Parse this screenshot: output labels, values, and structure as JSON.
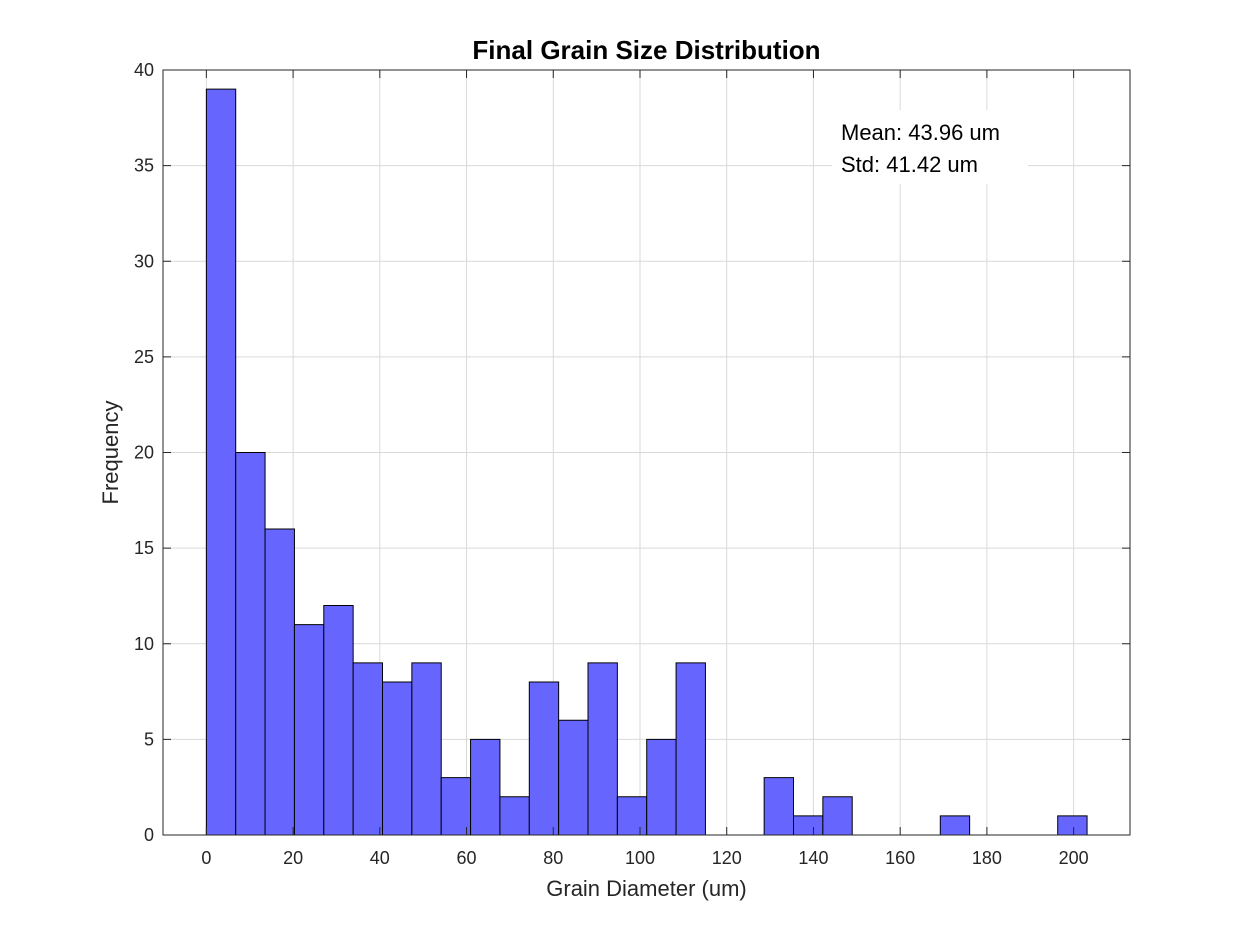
{
  "chart_data": {
    "type": "bar",
    "title": "Final Grain Size Distribution",
    "xlabel": "Grain Diameter (um)",
    "ylabel": "Frequency",
    "xlim": [
      -10,
      213
    ],
    "ylim": [
      0,
      40
    ],
    "xticks": [
      0,
      20,
      40,
      60,
      80,
      100,
      120,
      140,
      160,
      180,
      200
    ],
    "yticks": [
      0,
      5,
      10,
      15,
      20,
      25,
      30,
      35,
      40
    ],
    "grid": true,
    "bar_color": "#6666ff",
    "bin_edges": [
      0,
      6.77,
      13.54,
      20.31,
      27.08,
      33.85,
      40.62,
      47.39,
      54.16,
      60.93,
      67.7,
      74.47,
      81.24,
      88.01,
      94.78,
      101.55,
      108.32,
      115.09,
      121.86,
      128.63,
      135.4,
      142.17,
      148.94,
      155.71,
      162.48,
      169.25,
      176.02,
      182.79,
      189.56,
      196.33,
      203.1
    ],
    "values": [
      39,
      20,
      16,
      11,
      12,
      9,
      8,
      9,
      3,
      5,
      2,
      8,
      6,
      9,
      2,
      5,
      9,
      0,
      0,
      3,
      1,
      2,
      0,
      0,
      0,
      1,
      0,
      0,
      0,
      1
    ],
    "annotations": [
      "Mean: 43.96 um",
      "Std: 41.42 um"
    ]
  }
}
